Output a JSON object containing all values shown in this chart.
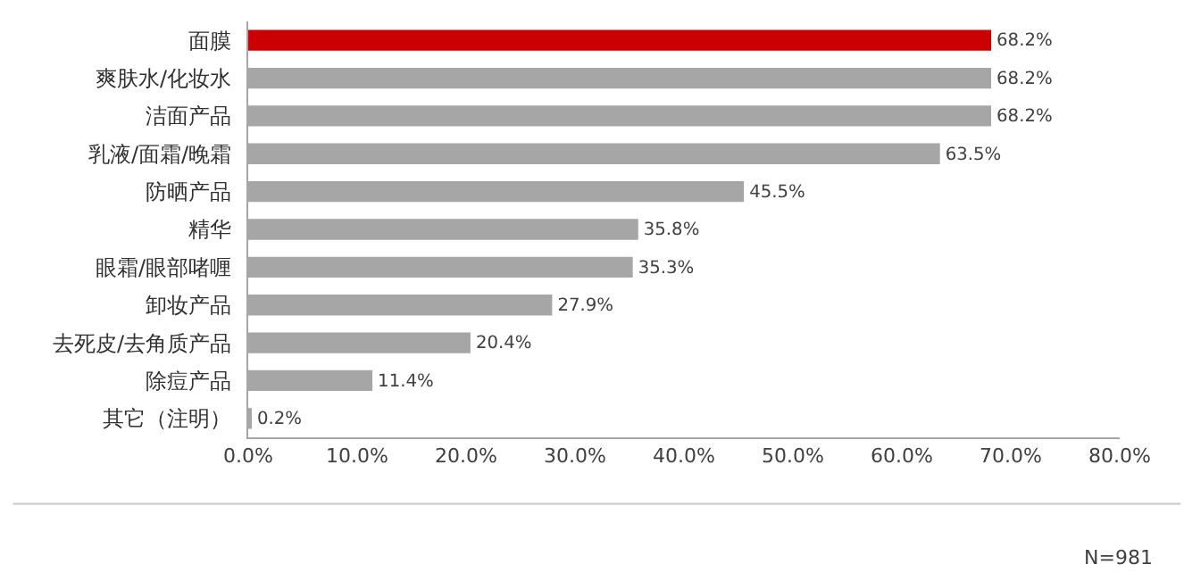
{
  "chart_data": {
    "type": "bar",
    "orientation": "horizontal",
    "categories": [
      "面膜",
      "爽肤水/化妆水",
      "洁面产品",
      "乳液/面霜/晚霜",
      "防晒产品",
      "精华",
      "眼霜/眼部啫喱",
      "卸妆产品",
      "去死皮/去角质产品",
      "除痘产品",
      "其它（注明）"
    ],
    "values": [
      68.2,
      68.2,
      68.2,
      63.5,
      45.5,
      35.8,
      35.3,
      27.9,
      20.4,
      11.4,
      0.2
    ],
    "value_labels": [
      "68.2%",
      "68.2%",
      "68.2%",
      "63.5%",
      "45.5%",
      "35.8%",
      "35.3%",
      "27.9%",
      "20.4%",
      "11.4%",
      "0.2%"
    ],
    "colors": [
      "#cc0000",
      "#a6a6a6",
      "#a6a6a6",
      "#a6a6a6",
      "#a6a6a6",
      "#a6a6a6",
      "#a6a6a6",
      "#a6a6a6",
      "#a6a6a6",
      "#a6a6a6",
      "#a6a6a6"
    ],
    "xlim": [
      0,
      80
    ],
    "xticks": [
      {
        "value": 0,
        "label": "0.0%"
      },
      {
        "value": 10,
        "label": "10.0%"
      },
      {
        "value": 20,
        "label": "20.0%"
      },
      {
        "value": 30,
        "label": "30.0%"
      },
      {
        "value": 40,
        "label": "40.0%"
      },
      {
        "value": 50,
        "label": "50.0%"
      },
      {
        "value": 60,
        "label": "60.0%"
      },
      {
        "value": 70,
        "label": "70.0%"
      },
      {
        "value": 80,
        "label": "80.0%"
      }
    ],
    "annotations": [
      "N=981"
    ]
  }
}
